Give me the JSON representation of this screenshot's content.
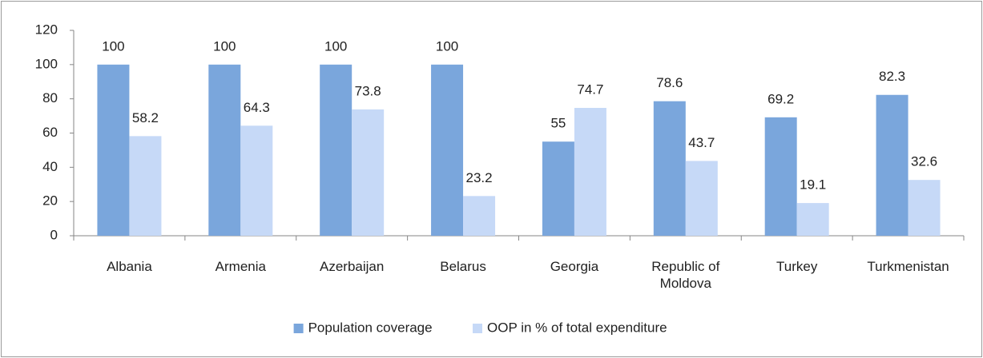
{
  "chart_data": {
    "type": "bar",
    "categories": [
      "Albania",
      "Armenia",
      "Azerbaijan",
      "Belarus",
      "Georgia",
      "Republic of Moldova",
      "Turkey",
      "Turkmenistan"
    ],
    "series": [
      {
        "name": "Population coverage",
        "color": "#7aa6dc",
        "values": [
          100,
          100,
          100,
          100,
          55,
          78.6,
          69.2,
          82.3
        ]
      },
      {
        "name": "OOP in % of total expenditure",
        "color": "#c6d9f7",
        "values": [
          58.2,
          64.3,
          73.8,
          23.2,
          74.7,
          43.7,
          19.1,
          32.6
        ]
      }
    ],
    "ylim": [
      0,
      120
    ],
    "yticks": [
      0,
      20,
      40,
      60,
      80,
      100,
      120
    ],
    "legend": "bottom"
  }
}
